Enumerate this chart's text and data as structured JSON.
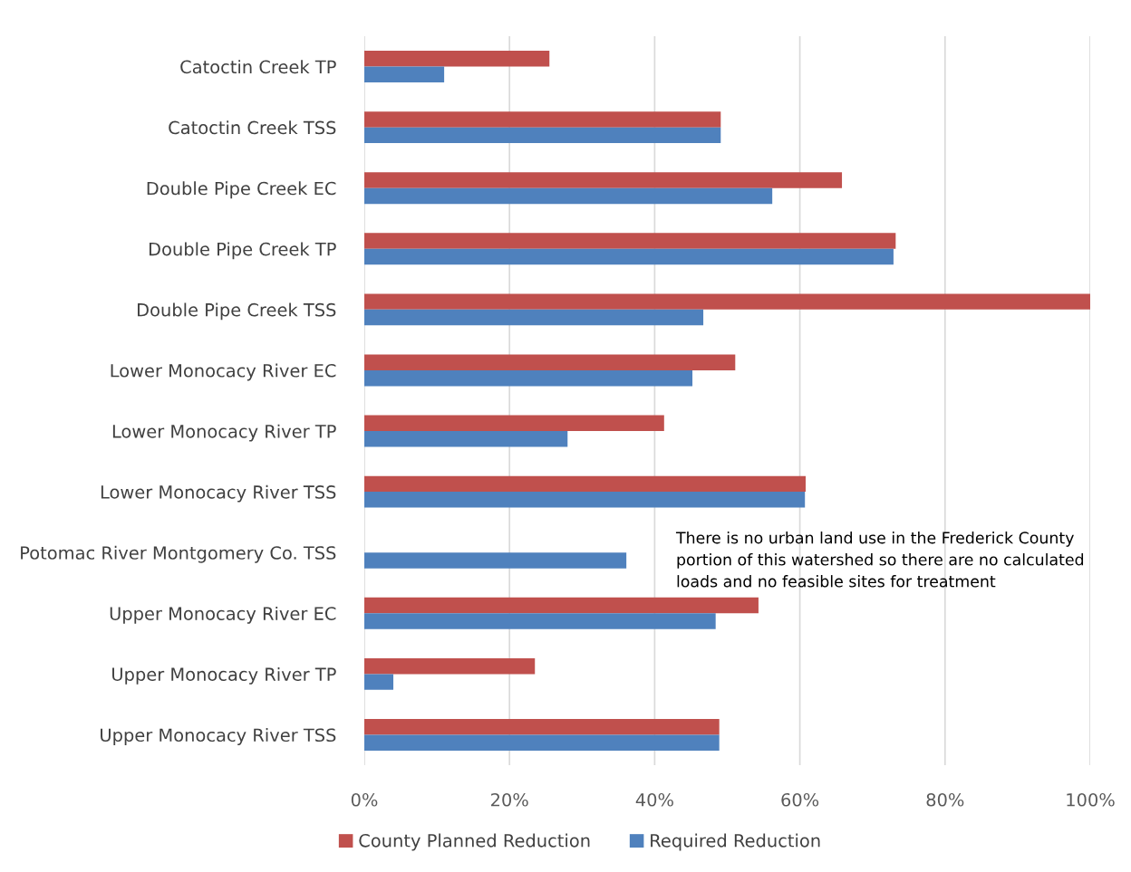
{
  "chart_data": {
    "type": "bar",
    "orientation": "horizontal",
    "categories": [
      "Catoctin Creek TP",
      "Catoctin Creek TSS",
      "Double Pipe Creek EC",
      "Double Pipe Creek TP",
      "Double Pipe Creek TSS",
      "Lower Monocacy River EC",
      "Lower Monocacy River TP",
      "Lower Monocacy River TSS",
      "Potomac River Montgomery Co. TSS",
      "Upper Monocacy River EC",
      "Upper Monocacy River TP",
      "Upper Monocacy River TSS"
    ],
    "series": [
      {
        "name": "County Planned Reduction",
        "color": "#c0504d",
        "values": [
          25.5,
          49.1,
          65.8,
          73.2,
          100,
          51.1,
          41.3,
          60.8,
          null,
          54.3,
          23.5,
          48.9
        ]
      },
      {
        "name": "Required Reduction",
        "color": "#4f81bd",
        "values": [
          11.0,
          49.1,
          56.2,
          72.9,
          46.7,
          45.2,
          28.0,
          60.7,
          36.1,
          48.4,
          4.0,
          48.9
        ]
      }
    ],
    "xlim": [
      0,
      100
    ],
    "xticks": [
      {
        "value": 0,
        "label": "0%"
      },
      {
        "value": 20,
        "label": "20%"
      },
      {
        "value": 40,
        "label": "40%"
      },
      {
        "value": 60,
        "label": "60%"
      },
      {
        "value": 80,
        "label": "80%"
      },
      {
        "value": 100,
        "label": "100%"
      }
    ],
    "grid": "x",
    "legend": "bottom",
    "annotations": [
      "There is no urban land use in the Frederick County portion of this watershed so there are no calculated loads and no feasible sites for treatment"
    ]
  }
}
